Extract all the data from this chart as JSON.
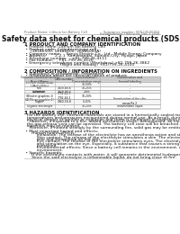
{
  "title": "Safety data sheet for chemical products (SDS)",
  "header_left": "Product Name: Lithium Ion Battery Cell",
  "header_right_line1": "Substance number: SDS-LIB-00010",
  "header_right_line2": "Establishment / Revision: Dec.1 2016",
  "section1_title": "1 PRODUCT AND COMPANY IDENTIFICATION",
  "section1_lines": [
    " • Product name: Lithium Ion Battery Cell",
    " • Product code: Cylindrical-type cell",
    "     (18186500, 18186600, 26186000A)",
    " • Company name:    Sanyo Electric Co., Ltd.  Mobile Energy Company",
    " • Address:       2-2-1  Kamimandai, Sumoto-City, Hyogo, Japan",
    " • Telephone number:    +81-799-26-4111",
    " • Fax number:    +81-799-26-4120",
    " • Emergency telephone number (Weekdays) +81-799-26-3862",
    "                             (Night and holiday) +81-799-26-4100"
  ],
  "section2_title": "2 COMPOSITION / INFORMATION ON INGREDIENTS",
  "section2_lines": [
    " • Substance or preparation: Preparation",
    " • Information about the chemical nature of product:"
  ],
  "table_headers": [
    "Common chemical name /\nBrand Name",
    "CAS number",
    "Concentration /\nConcentration range",
    "Classification and\nhazard labeling"
  ],
  "table_rows": [
    [
      "Lithium cobalt oxide\n(LiMnCo(O4)s)",
      "-",
      "30-50%",
      "-"
    ],
    [
      "Iron",
      "7439-89-6",
      "10-25%",
      "-"
    ],
    [
      "Aluminum",
      "7429-90-5",
      "2-8%",
      "-"
    ],
    [
      "Graphite\n(Blind in graphite-1)\n(AI-Mo as graphite-1)",
      "7782-42-5\n7782-44-2",
      "10-20%",
      "-"
    ],
    [
      "Copper",
      "7440-50-8",
      "5-15%",
      "Sensitization of the skin\ngroup Ra 2"
    ],
    [
      "Organic electrolyte",
      "-",
      "10-20%",
      "Inflammable liquid"
    ]
  ],
  "section3_title": "3 HAZARDS IDENTIFICATION",
  "section3_body": [
    "  For the battery cell, chemical materials are stored in a hermetically sealed metal case, designed to withstand",
    "  temperatures and pressures encountered during normal use. As a result, during normal use, there is no",
    "  physical danger of ignition or explosion and there is no danger of hazardous materials leakage.",
    "    However, if exposed to a fire, added mechanical shock, decomposed, an electrical current may cause",
    "  the gas release vent can be operated. The battery cell case will be breached at fire patterns, hazardous",
    "  materials may be released.",
    "    Moreover, if heated strongly by the surrounding fire, solid gas may be emitted.",
    "",
    " • Most important hazard and effects:",
    "      Human health effects:",
    "          Inhalation: The release of the electrolyte has an anesthesia action and stimulates a respiratory tract.",
    "          Skin contact: The release of the electrolyte stimulates a skin. The electrolyte skin contact causes a",
    "          sore and stimulation on the skin.",
    "          Eye contact: The release of the electrolyte stimulates eyes. The electrolyte eye contact causes a sore",
    "          and stimulation on the eye. Especially, a substance that causes a strong inflammation of the eye is",
    "          contained.",
    "          Environmental effects: Since a battery cell remains in the environment, do not throw out it into the",
    "          environment.",
    "",
    " • Specific hazards:",
    "      If the electrolyte contacts with water, it will generate detrimental hydrogen fluoride.",
    "      Since the said electrolyte is inflammable liquid, do not bring close to fire."
  ],
  "bg_color": "#ffffff",
  "text_color": "#111111",
  "header_text_color": "#666666",
  "border_color": "#aaaaaa",
  "table_header_bg": "#cccccc",
  "table_row_bg1": "#f5f5f5",
  "table_row_bg2": "#ffffff",
  "title_fontsize": 5.5,
  "body_fontsize": 3.2,
  "section_fontsize": 3.8,
  "header_fontsize": 2.5
}
